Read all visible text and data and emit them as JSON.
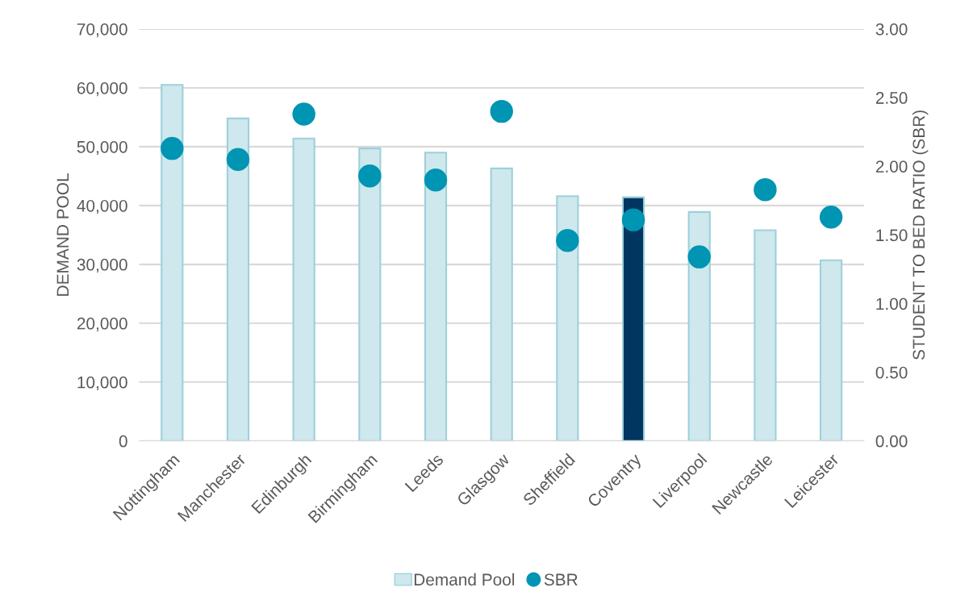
{
  "chart_data": {
    "type": "bar",
    "ylabel": "DEMAND POOL",
    "y2label": "STUDENT TO BED RATIO (SBR)",
    "categories": [
      "Nottingham",
      "Manchester",
      "Edinburgh",
      "Birmingham",
      "Leeds",
      "Glasgow",
      "Sheffield",
      "Coventry",
      "Liverpool",
      "Newcastle",
      "Leicester"
    ],
    "series": [
      {
        "name": "Demand Pool",
        "color": "#cfe8ed",
        "colors": [
          "#cfe8ed",
          "#cfe8ed",
          "#cfe8ed",
          "#cfe8ed",
          "#cfe8ed",
          "#cfe8ed",
          "#cfe8ed",
          "#003660",
          "#cfe8ed",
          "#cfe8ed",
          "#cfe8ed"
        ],
        "values": [
          60500,
          54800,
          51400,
          49700,
          49000,
          46300,
          41600,
          41400,
          38900,
          35800,
          30700
        ]
      },
      {
        "name": "SBR",
        "type": "scatter",
        "axis": "y2",
        "color": "#0095b3",
        "values": [
          2.13,
          2.05,
          2.38,
          1.93,
          1.9,
          2.4,
          1.46,
          1.61,
          1.34,
          1.83,
          1.63
        ]
      }
    ],
    "ylim": [
      0,
      70000
    ],
    "yticks": [
      {
        "value": 0,
        "label": "0"
      },
      {
        "value": 10000,
        "label": "10,000"
      },
      {
        "value": 20000,
        "label": "20,000"
      },
      {
        "value": 30000,
        "label": "30,000"
      },
      {
        "value": 40000,
        "label": "40,000"
      },
      {
        "value": 50000,
        "label": "50,000"
      },
      {
        "value": 60000,
        "label": "60,000"
      },
      {
        "value": 70000,
        "label": "70,000"
      }
    ],
    "y2lim": [
      0,
      3
    ],
    "y2ticks": [
      {
        "value": 0,
        "label": "0.00"
      },
      {
        "value": 0.5,
        "label": "0.50"
      },
      {
        "value": 1,
        "label": "1.00"
      },
      {
        "value": 1.5,
        "label": "1.50"
      },
      {
        "value": 2,
        "label": "2.00"
      },
      {
        "value": 2.5,
        "label": "2.50"
      },
      {
        "value": 3,
        "label": "3.00"
      }
    ],
    "grid": "y",
    "legend": "bottom",
    "marker": "circle"
  }
}
